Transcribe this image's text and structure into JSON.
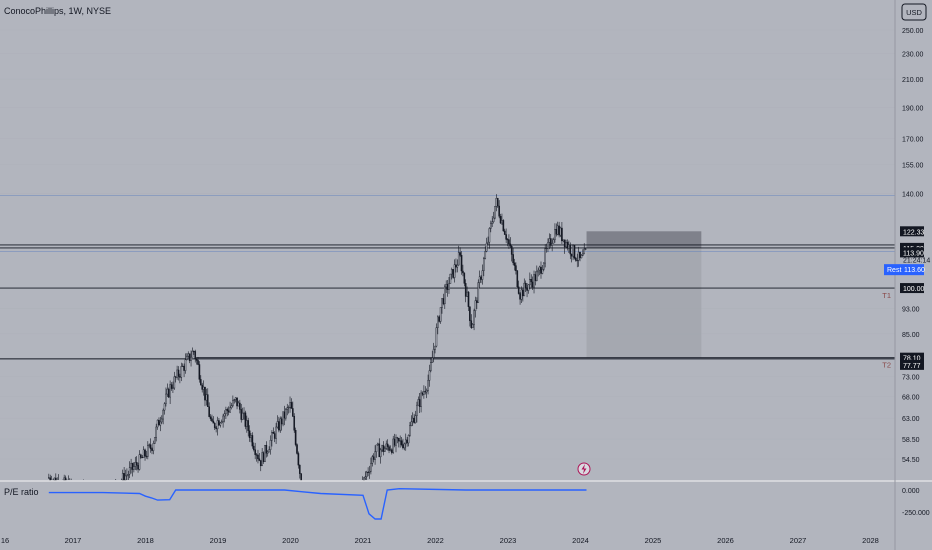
{
  "header": {
    "title": "ConocoPhillips, 1W, NYSE"
  },
  "currency": "USD",
  "chart_data": {
    "type": "candlestick",
    "symbol": "ConocoPhillips",
    "timeframe": "1W",
    "exchange": "NYSE",
    "y_scale": "log",
    "ylim": [
      52,
      280
    ],
    "x_labels": [
      "16",
      "2017",
      "2018",
      "2019",
      "2020",
      "2021",
      "2022",
      "2023",
      "2024",
      "2025",
      "2026",
      "2027",
      "2028"
    ],
    "y_ticks": [
      "250.00",
      "230.00",
      "210.00",
      "190.00",
      "170.00",
      "155.00",
      "140.00",
      "93.00",
      "85.00",
      "73.00",
      "68.00",
      "63.00",
      "58.50",
      "54.50"
    ],
    "price_path": [
      [
        "2016-09",
        51.0
      ],
      [
        "2016-11",
        50.0
      ],
      [
        "2017-06",
        47.0
      ],
      [
        "2017-12",
        54.0
      ],
      [
        "2018-02",
        57.0
      ],
      [
        "2018-05",
        70.0
      ],
      [
        "2018-09",
        80.0
      ],
      [
        "2018-12",
        61.0
      ],
      [
        "2019-04",
        67.0
      ],
      [
        "2019-08",
        54.0
      ],
      [
        "2020-01",
        66.0
      ],
      [
        "2020-03",
        48.0
      ],
      [
        "2020-11",
        44.0
      ],
      [
        "2021-03",
        56.0
      ],
      [
        "2021-08",
        58.0
      ],
      [
        "2021-12",
        73.0
      ],
      [
        "2022-02",
        95.0
      ],
      [
        "2022-05",
        112.0
      ],
      [
        "2022-07",
        87.0
      ],
      [
        "2022-10",
        122.0
      ],
      [
        "2022-11",
        136.0
      ],
      [
        "2023-01",
        118.0
      ],
      [
        "2023-03",
        98.0
      ],
      [
        "2023-06",
        105.0
      ],
      [
        "2023-09",
        124.0
      ],
      [
        "2023-11",
        116.0
      ],
      [
        "2024-01",
        110.0
      ],
      [
        "2024-02",
        113.6
      ]
    ],
    "horizontal_levels": [
      {
        "value": 116.56,
        "label": "116.56"
      },
      {
        "value": 115.29,
        "label": "115.29"
      },
      {
        "value": 100.0,
        "label": "100.00",
        "tag": "T1"
      },
      {
        "value": 78.1,
        "label": "78.10",
        "tag": "T2"
      },
      {
        "value": 77.77,
        "label": "77.77"
      },
      {
        "value": 139.0,
        "label": ""
      },
      {
        "value": 113.9,
        "label": ""
      }
    ],
    "price_labels": [
      {
        "value": 122.33,
        "text": "122.33"
      },
      {
        "value": 116.56,
        "text": "116.56"
      },
      {
        "value": 115.29,
        "text": "115.29"
      },
      {
        "value": 113.9,
        "text": "113.90"
      },
      {
        "value": 100.0,
        "text": "100.00"
      },
      {
        "value": 78.1,
        "text": "78.10"
      },
      {
        "value": 77.77,
        "text": "77.77"
      }
    ],
    "countdown": "21:24:14",
    "last_price": {
      "label": "Rest",
      "value": "113.60"
    },
    "position_box": {
      "stop_top": 122.33,
      "entry": 115.29,
      "target": 78.1,
      "start": "2024-02",
      "end": "2025-09"
    },
    "indicator": {
      "name": "P/E ratio",
      "ticks": [
        "0.000",
        "-250.000"
      ],
      "path": [
        [
          "2016-09",
          -30
        ],
        [
          "2017-06",
          -30
        ],
        [
          "2017-12",
          -40
        ],
        [
          "2018-01",
          -70
        ],
        [
          "2018-02",
          -90
        ],
        [
          "2018-03",
          -115
        ],
        [
          "2018-05",
          -110
        ],
        [
          "2018-06",
          0
        ],
        [
          "2019-01",
          0
        ],
        [
          "2019-12",
          0
        ],
        [
          "2020-03",
          -20
        ],
        [
          "2020-06",
          -40
        ],
        [
          "2021-01",
          -60
        ],
        [
          "2021-02",
          -270
        ],
        [
          "2021-03",
          -330
        ],
        [
          "2021-04",
          -330
        ],
        [
          "2021-05",
          0
        ],
        [
          "2021-07",
          15
        ],
        [
          "2022-06",
          0
        ],
        [
          "2023-06",
          0
        ],
        [
          "2024-02",
          0
        ]
      ]
    }
  }
}
